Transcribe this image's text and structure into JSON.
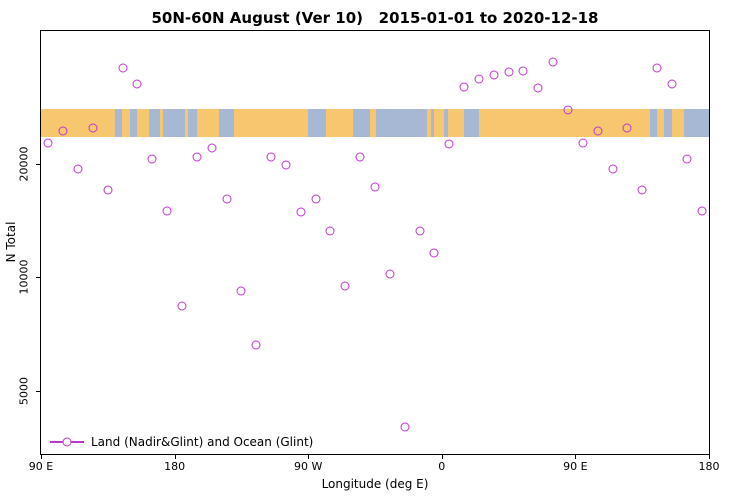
{
  "title": "50N-60N August (Ver 10)   2015-01-01 to 2020-12-18",
  "chart_data": {
    "type": "scatter",
    "title": "50N-60N August (Ver 10)   2015-01-01 to 2020-12-18",
    "xlabel": "Longitude (deg E)",
    "ylabel": "N Total",
    "x_axis": {
      "min": 90,
      "max": 540,
      "ticks": [
        {
          "value": 90,
          "label": "90 E"
        },
        {
          "value": 180,
          "label": "180"
        },
        {
          "value": 270,
          "label": "90 W"
        },
        {
          "value": 360,
          "label": "0"
        },
        {
          "value": 450,
          "label": "90 E"
        },
        {
          "value": 540,
          "label": "180"
        }
      ]
    },
    "y_axis": {
      "scale": "log",
      "min": 3400,
      "max": 45000,
      "ticks": [
        {
          "value": 5000,
          "label": "5000"
        },
        {
          "value": 10000,
          "label": "10000"
        },
        {
          "value": 20000,
          "label": "20000"
        }
      ]
    },
    "series": [
      {
        "name": "Land (Nadir&Glint) and Ocean (Glint)",
        "marker": "open-circle",
        "color": "#bf36cf",
        "points": [
          [
            95,
            22700
          ],
          [
            105,
            24500
          ],
          [
            115,
            19400
          ],
          [
            125,
            24900
          ],
          [
            135,
            17000
          ],
          [
            145,
            36000
          ],
          [
            155,
            32600
          ],
          [
            165,
            20600
          ],
          [
            175,
            15000
          ],
          [
            185,
            8400
          ],
          [
            195,
            20900
          ],
          [
            205,
            22000
          ],
          [
            215,
            16100
          ],
          [
            225,
            9200
          ],
          [
            235,
            6600
          ],
          [
            245,
            20800
          ],
          [
            255,
            19800
          ],
          [
            265,
            14900
          ],
          [
            275,
            16100
          ],
          [
            285,
            13300
          ],
          [
            295,
            9500
          ],
          [
            305,
            20900
          ],
          [
            315,
            17400
          ],
          [
            325,
            10200
          ],
          [
            335,
            4000
          ],
          [
            345,
            13300
          ],
          [
            355,
            11600
          ],
          [
            365,
            22600
          ],
          [
            375,
            31900
          ],
          [
            385,
            33600
          ],
          [
            395,
            34400
          ],
          [
            405,
            35000
          ],
          [
            415,
            35200
          ],
          [
            425,
            31700
          ],
          [
            435,
            37300
          ],
          [
            445,
            27800
          ],
          [
            455,
            22700
          ],
          [
            465,
            24500
          ],
          [
            475,
            19400
          ],
          [
            485,
            24900
          ],
          [
            495,
            17000
          ],
          [
            505,
            36000
          ],
          [
            515,
            32600
          ],
          [
            525,
            20600
          ],
          [
            535,
            15000
          ]
        ]
      }
    ],
    "map_band": {
      "description": "50N-60N latitude strip world map band",
      "value_top": 28000,
      "value_bottom": 23500,
      "ocean_color": "#a6b8d4",
      "land_color": "#f6c76f",
      "land_segments_pct": [
        [
          0,
          11.1
        ],
        [
          12.2,
          13.3
        ],
        [
          14.4,
          16.2
        ],
        [
          17.8,
          18.3
        ],
        [
          21.5,
          22.0
        ],
        [
          23.3,
          26.7
        ],
        [
          28.9,
          40.0
        ],
        [
          42.7,
          46.7
        ],
        [
          49.3,
          50.2
        ],
        [
          57.8,
          58.4
        ],
        [
          58.9,
          60.4
        ],
        [
          60.9,
          63.3
        ],
        [
          65.6,
          91.1
        ],
        [
          92.2,
          93.3
        ],
        [
          94.4,
          96.2
        ]
      ]
    },
    "legend": {
      "position": "bottom-left",
      "label": "Land (Nadir&Glint) and Ocean (Glint)"
    }
  }
}
